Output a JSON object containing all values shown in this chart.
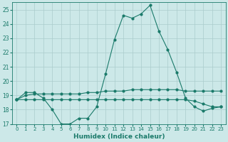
{
  "xlabel": "Humidex (Indice chaleur)",
  "background_color": "#cce8e8",
  "grid_color": "#aacccc",
  "line_color": "#1a7a6a",
  "x": [
    0,
    1,
    2,
    3,
    4,
    5,
    6,
    7,
    8,
    9,
    10,
    11,
    12,
    13,
    14,
    15,
    16,
    17,
    18,
    19,
    20,
    21,
    22,
    23
  ],
  "y_main": [
    18.7,
    19.2,
    19.2,
    18.8,
    18.0,
    17.0,
    17.0,
    17.4,
    17.4,
    18.2,
    20.5,
    22.9,
    24.6,
    24.4,
    24.7,
    25.3,
    23.5,
    22.2,
    20.6,
    18.8,
    18.2,
    17.9,
    18.1,
    18.2
  ],
  "y_upper": [
    18.7,
    19.0,
    19.1,
    19.1,
    19.1,
    19.1,
    19.1,
    19.1,
    19.2,
    19.2,
    19.3,
    19.3,
    19.3,
    19.4,
    19.4,
    19.4,
    19.4,
    19.4,
    19.4,
    19.3,
    19.3,
    19.3,
    19.3,
    19.3
  ],
  "y_lower": [
    18.7,
    18.7,
    18.7,
    18.7,
    18.7,
    18.7,
    18.7,
    18.7,
    18.7,
    18.7,
    18.7,
    18.7,
    18.7,
    18.7,
    18.7,
    18.7,
    18.7,
    18.7,
    18.7,
    18.7,
    18.6,
    18.4,
    18.2,
    18.2
  ],
  "ylim": [
    17,
    25.5
  ],
  "xlim": [
    -0.5,
    23.5
  ],
  "yticks": [
    17,
    18,
    19,
    20,
    21,
    22,
    23,
    24,
    25
  ],
  "xticks": [
    0,
    1,
    2,
    3,
    4,
    5,
    6,
    7,
    8,
    9,
    10,
    11,
    12,
    13,
    14,
    15,
    16,
    17,
    18,
    19,
    20,
    21,
    22,
    23
  ]
}
